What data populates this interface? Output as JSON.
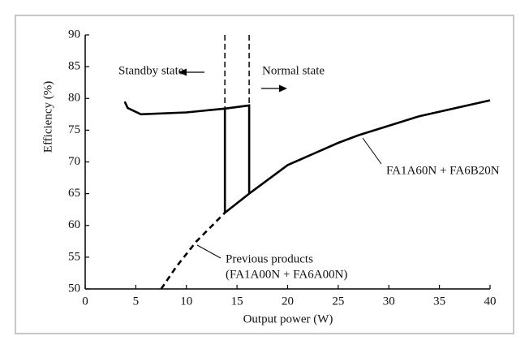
{
  "chart_data": {
    "type": "line",
    "xlabel": "Output power (W)",
    "ylabel": "Efficiency (%)",
    "xlim": [
      0,
      40
    ],
    "xticks": [
      0,
      5,
      10,
      15,
      20,
      25,
      30,
      35,
      40
    ],
    "ylim": [
      50,
      90
    ],
    "yticks": [
      50,
      55,
      60,
      65,
      70,
      75,
      80,
      85,
      90
    ],
    "series": [
      {
        "label_lines": [
          "FA1A60N + FA6B20N"
        ],
        "color": "#000000",
        "dashed": false,
        "x": [
          3.9,
          4.2,
          5.5,
          10,
          13.8,
          16.2,
          16.2,
          13.8,
          13.8,
          null,
          16.2,
          20,
          25,
          27,
          33,
          40
        ],
        "values": [
          79.5,
          78.5,
          77.5,
          77.8,
          78.4,
          78.9,
          65,
          62,
          78.4,
          null,
          65,
          69.5,
          73,
          74.2,
          77.2,
          79.7
        ]
      },
      {
        "label_lines": [
          "Previous products",
          "(FA1A00N + FA6A00N)"
        ],
        "color": "#000000",
        "dashed": true,
        "x": [
          7.5,
          9,
          11,
          13.8
        ],
        "values": [
          50,
          53.5,
          57.5,
          62
        ]
      }
    ],
    "boundaries": [
      13.8,
      16.2
    ],
    "annotations": [
      "Standby state",
      "Normal state"
    ]
  }
}
